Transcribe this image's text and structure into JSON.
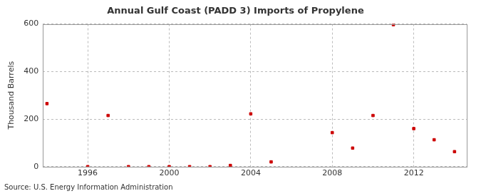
{
  "chart_data": {
    "type": "scatter",
    "title": "Annual Gulf Coast (PADD 3) Imports of Propylene",
    "y_label": "Thousand Barrels",
    "source": "Source: U.S. Energy Information Administration",
    "x": [
      1994,
      1996,
      1997,
      1998,
      1999,
      2000,
      2001,
      2002,
      2003,
      2004,
      2005,
      2008,
      2009,
      2010,
      2011,
      2012,
      2013,
      2014
    ],
    "values": [
      265,
      0,
      215,
      0,
      0,
      0,
      0,
      0,
      5,
      222,
      20,
      143,
      78,
      215,
      597,
      160,
      113,
      63
    ],
    "color": "#cc0000",
    "marker": "square",
    "xlim": [
      1993.8,
      2014.6
    ],
    "xticks": [
      1996,
      2000,
      2004,
      2008,
      2012
    ],
    "ylim": [
      0,
      600
    ],
    "yticks": [
      0,
      200,
      400,
      600
    ],
    "grid": true
  }
}
